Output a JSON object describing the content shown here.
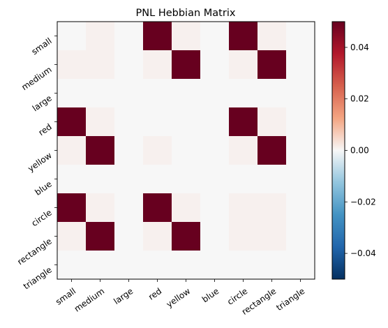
{
  "chart_data": {
    "type": "heatmap",
    "title": "PNL Hebbian Matrix",
    "xlabel": "",
    "ylabel": "",
    "x_categories": [
      "small",
      "medium",
      "large",
      "red",
      "yellow",
      "blue",
      "circle",
      "rectangle",
      "triangle"
    ],
    "y_categories": [
      "small",
      "medium",
      "large",
      "red",
      "yellow",
      "blue",
      "circle",
      "rectangle",
      "triangle"
    ],
    "values": [
      [
        0,
        0.001,
        0,
        0.05,
        0.001,
        0,
        0.05,
        0.001,
        0
      ],
      [
        0.001,
        0.001,
        0,
        0.001,
        0.05,
        0,
        0.001,
        0.05,
        0
      ],
      [
        0,
        0,
        0,
        0,
        0,
        0,
        0,
        0,
        0
      ],
      [
        0.05,
        0.001,
        0,
        0,
        0,
        0,
        0.05,
        0.001,
        0
      ],
      [
        0.001,
        0.05,
        0,
        0.001,
        0,
        0,
        0.001,
        0.05,
        0
      ],
      [
        0,
        0,
        0,
        0,
        0,
        0,
        0,
        0,
        0
      ],
      [
        0.05,
        0.001,
        0,
        0.05,
        0.001,
        0,
        0.001,
        0.001,
        0
      ],
      [
        0.001,
        0.05,
        0,
        0.001,
        0.05,
        0,
        0.001,
        0.001,
        0
      ],
      [
        0,
        0,
        0,
        0,
        0,
        0,
        0,
        0,
        0
      ]
    ],
    "colormap": "RdBu_r",
    "vmin": -0.05,
    "vmax": 0.05,
    "colorbar_ticks": [
      "0.04",
      "0.02",
      "0.00",
      "−0.02",
      "−0.04"
    ],
    "colorbar_tick_values": [
      0.04,
      0.02,
      0.0,
      -0.02,
      -0.04
    ],
    "grid": false,
    "x_tick_rotation_deg": -35,
    "y_tick_rotation_deg": -35
  }
}
